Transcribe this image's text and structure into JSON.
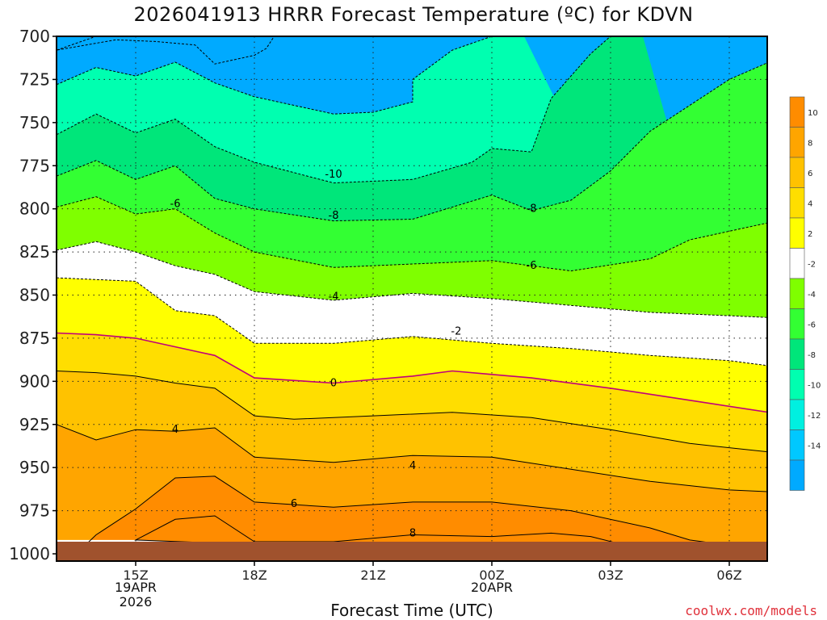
{
  "title": "2026041913 HRRR Forecast Temperature (ºC) for KDVN",
  "credit": "coolwx.com/models",
  "chart_data": {
    "type": "contour",
    "title": "2026041913 HRRR Forecast Temperature (ºC) for KDVN",
    "xlabel": "Forecast Time (UTC)",
    "ylabel": "",
    "x_ticks": [
      "15Z",
      "18Z",
      "21Z",
      "00Z",
      "03Z",
      "06Z"
    ],
    "x_tick_hours": [
      15,
      18,
      21,
      24,
      27,
      30
    ],
    "xlim_hours": [
      13,
      31
    ],
    "date_labels": [
      {
        "hour": 15,
        "lines": [
          "19APR",
          "2026"
        ]
      },
      {
        "hour": 24,
        "lines": [
          "20APR"
        ]
      }
    ],
    "y_ticks": [
      "700",
      "725",
      "750",
      "775",
      "800",
      "825",
      "850",
      "875",
      "900",
      "925",
      "950",
      "975",
      "1000"
    ],
    "y_tick_values": [
      700,
      725,
      750,
      775,
      800,
      825,
      850,
      875,
      900,
      925,
      950,
      975,
      1000
    ],
    "ylim_hPa": [
      700,
      1005
    ],
    "grid": true,
    "colorbar": {
      "labels": [
        "10",
        "8",
        "6",
        "4",
        "2",
        "-2",
        "-4",
        "-6",
        "-8",
        "-10",
        "-12",
        "-14"
      ],
      "colors": [
        "#ff8c00",
        "#ffa500",
        "#ffc200",
        "#ffde00",
        "#ffff00",
        "#ffffff",
        "#7fff00",
        "#33ff33",
        "#00e67a",
        "#00ffb0",
        "#00f0e0",
        "#00c8ff",
        "#00aaff"
      ]
    },
    "contour_labels": [
      {
        "label": "-10",
        "hour": 20.0,
        "hPa": 780
      },
      {
        "label": "-8",
        "hour": 20.0,
        "hPa": 804
      },
      {
        "label": "-8",
        "hour": 25.0,
        "hPa": 800
      },
      {
        "label": "-6",
        "hour": 16.0,
        "hPa": 797
      },
      {
        "label": "-6",
        "hour": 25.0,
        "hPa": 833
      },
      {
        "label": "-4",
        "hour": 20.0,
        "hPa": 851
      },
      {
        "label": "-2",
        "hour": 23.1,
        "hPa": 871
      },
      {
        "label": "0",
        "hour": 20.0,
        "hPa": 901
      },
      {
        "label": "4",
        "hour": 16.0,
        "hPa": 928
      },
      {
        "label": "4",
        "hour": 22.0,
        "hPa": 949
      },
      {
        "label": "6",
        "hour": 19.0,
        "hPa": 971
      },
      {
        "label": "8",
        "hour": 22.0,
        "hPa": 988
      }
    ],
    "contours": [
      {
        "level": -14,
        "pts": [
          [
            13.0,
            708
          ],
          [
            14.0,
            700
          ],
          [
            18.0,
            700
          ],
          [
            18.5,
            700
          ],
          [
            18.3,
            707
          ],
          [
            18.0,
            711
          ],
          [
            17.0,
            716
          ],
          [
            16.5,
            705
          ],
          [
            15.5,
            703
          ],
          [
            14.5,
            702
          ],
          [
            13.0,
            708
          ]
        ]
      },
      {
        "level": -12,
        "pts": [
          [
            13.0,
            728
          ],
          [
            14.0,
            718
          ],
          [
            15.0,
            723
          ],
          [
            16.0,
            715
          ],
          [
            17.0,
            727
          ],
          [
            18.0,
            735
          ],
          [
            20.0,
            745
          ],
          [
            21.0,
            744
          ],
          [
            22.0,
            738
          ],
          [
            22.0,
            725
          ],
          [
            23.0,
            708
          ],
          [
            24.0,
            700
          ]
        ]
      },
      {
        "level": -10,
        "pts": [
          [
            13.0,
            757
          ],
          [
            14.0,
            745
          ],
          [
            15.0,
            756
          ],
          [
            16.0,
            748
          ],
          [
            17.0,
            764
          ],
          [
            18.0,
            773
          ],
          [
            20.0,
            785
          ],
          [
            22.0,
            783
          ],
          [
            23.5,
            773
          ],
          [
            24.0,
            765
          ],
          [
            25.0,
            767
          ],
          [
            25.5,
            736
          ],
          [
            26.5,
            710
          ],
          [
            27.0,
            700
          ]
        ]
      },
      {
        "level": -8,
        "pts": [
          [
            13.0,
            781
          ],
          [
            14.0,
            772
          ],
          [
            15.0,
            783
          ],
          [
            16.0,
            775
          ],
          [
            17.0,
            794
          ],
          [
            18.0,
            800
          ],
          [
            20.0,
            807
          ],
          [
            22.0,
            806
          ],
          [
            24.0,
            792
          ],
          [
            25.0,
            801
          ],
          [
            26.0,
            795
          ],
          [
            27.0,
            778
          ],
          [
            28.0,
            755
          ],
          [
            29.0,
            740
          ],
          [
            30.0,
            725
          ],
          [
            31.0,
            715
          ]
        ]
      },
      {
        "level": -6,
        "pts": [
          [
            13.0,
            799
          ],
          [
            14.0,
            793
          ],
          [
            15.0,
            803
          ],
          [
            16.0,
            800
          ],
          [
            17.0,
            814
          ],
          [
            18.0,
            825
          ],
          [
            20.0,
            834
          ],
          [
            22.0,
            832
          ],
          [
            24.0,
            830
          ],
          [
            26.0,
            836
          ],
          [
            28.0,
            829
          ],
          [
            29.0,
            818
          ],
          [
            30.0,
            813
          ],
          [
            31.0,
            808
          ]
        ]
      },
      {
        "level": -4,
        "pts": [
          [
            13.0,
            824
          ],
          [
            14.0,
            819
          ],
          [
            15.0,
            825
          ],
          [
            16.0,
            833
          ],
          [
            17.0,
            838
          ],
          [
            18.0,
            848
          ],
          [
            20.0,
            853
          ],
          [
            22.0,
            849
          ],
          [
            24.0,
            852
          ],
          [
            26.0,
            856
          ],
          [
            28.0,
            860
          ],
          [
            30.0,
            862
          ],
          [
            31.0,
            863
          ]
        ]
      },
      {
        "level": -2,
        "pts": [
          [
            13.0,
            840
          ],
          [
            14.0,
            841
          ],
          [
            15.0,
            842
          ],
          [
            16.0,
            859
          ],
          [
            17.0,
            862
          ],
          [
            18.0,
            878
          ],
          [
            20.0,
            878
          ],
          [
            22.0,
            874
          ],
          [
            24.0,
            878
          ],
          [
            26.0,
            881
          ],
          [
            28.0,
            885
          ],
          [
            30.0,
            888
          ],
          [
            31.0,
            891
          ]
        ]
      },
      {
        "level": 0,
        "pts": [
          [
            13.0,
            872
          ],
          [
            14.0,
            873
          ],
          [
            15.0,
            875
          ],
          [
            16.0,
            880
          ],
          [
            17.0,
            885
          ],
          [
            18.0,
            898
          ],
          [
            20.0,
            901
          ],
          [
            22.0,
            897
          ],
          [
            23.0,
            894
          ],
          [
            24.0,
            896
          ],
          [
            25.0,
            898
          ],
          [
            27.0,
            904
          ],
          [
            29.0,
            911
          ],
          [
            31.0,
            918
          ]
        ]
      },
      {
        "level": 2,
        "pts": [
          [
            13.0,
            894
          ],
          [
            14.0,
            895
          ],
          [
            15.0,
            897
          ],
          [
            16.0,
            901
          ],
          [
            17.0,
            904
          ],
          [
            18.0,
            920
          ],
          [
            19.0,
            922
          ],
          [
            21.0,
            920
          ],
          [
            23.0,
            918
          ],
          [
            25.0,
            921
          ],
          [
            27.0,
            928
          ],
          [
            29.0,
            936
          ],
          [
            31.0,
            941
          ]
        ]
      },
      {
        "level": 4,
        "pts": [
          [
            13.0,
            925
          ],
          [
            14.0,
            934
          ],
          [
            15.0,
            928
          ],
          [
            16.0,
            929
          ],
          [
            17.0,
            927
          ],
          [
            18.0,
            944
          ],
          [
            20.0,
            947
          ],
          [
            22.0,
            943
          ],
          [
            24.0,
            944
          ],
          [
            26.0,
            951
          ],
          [
            28.0,
            958
          ],
          [
            30.0,
            963
          ],
          [
            31.0,
            964
          ]
        ]
      },
      {
        "level": 6,
        "pts": [
          [
            13.5,
            1000
          ],
          [
            14.0,
            989
          ],
          [
            15.0,
            974
          ],
          [
            16.0,
            956
          ],
          [
            17.0,
            955
          ],
          [
            18.0,
            970
          ],
          [
            20.0,
            973
          ],
          [
            22.0,
            970
          ],
          [
            24.0,
            970
          ],
          [
            26.0,
            975
          ],
          [
            28.0,
            985
          ],
          [
            29.0,
            992
          ],
          [
            30.0,
            995
          ],
          [
            31.0,
            996
          ]
        ]
      },
      {
        "level": 8,
        "pts": [
          [
            15.0,
            992
          ],
          [
            16.0,
            980
          ],
          [
            17.0,
            978
          ],
          [
            18.0,
            993
          ],
          [
            20.0,
            993
          ],
          [
            22.0,
            989
          ],
          [
            24.0,
            990
          ],
          [
            25.5,
            988
          ],
          [
            26.5,
            990
          ],
          [
            27.2,
            994
          ],
          [
            26.5,
            999
          ],
          [
            25.5,
            1001
          ]
        ]
      }
    ]
  }
}
